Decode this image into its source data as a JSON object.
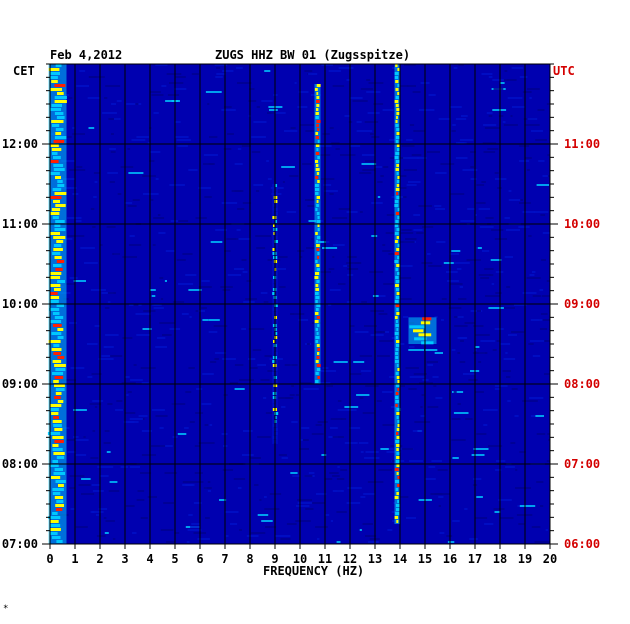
{
  "chart_data": {
    "type": "heatmap",
    "title": "ZUGS HHZ BW 01 (Zugsspitze)",
    "date": "Feb 4,2012",
    "left_axis_title": "CET",
    "right_axis_title": "UTC",
    "xlabel": "FREQUENCY (HZ)",
    "xlim": [
      0,
      20
    ],
    "x_ticks": [
      "0",
      "1",
      "2",
      "3",
      "4",
      "5",
      "6",
      "7",
      "8",
      "9",
      "10",
      "11",
      "12",
      "13",
      "14",
      "15",
      "16",
      "17",
      "18",
      "19",
      "20"
    ],
    "y_time_range_cet": [
      "07:00",
      "13:00"
    ],
    "y_ticks_cet": [
      "07:00",
      "08:00",
      "09:00",
      "10:00",
      "11:00",
      "12:00"
    ],
    "y_ticks_utc": [
      "06:00",
      "07:00",
      "08:00",
      "09:00",
      "10:00",
      "11:00"
    ],
    "colors": {
      "background": "#0000b0",
      "low": "#0010c8",
      "mid": "#00c8ff",
      "high": "#ffff00",
      "peak": "#ff2000",
      "utc_label": "#d40000"
    },
    "energy_bands": [
      {
        "freq_hz": 0.3,
        "time_cet": [
          "07:00",
          "13:00"
        ],
        "level": "high"
      },
      {
        "freq_hz": 9.0,
        "time_cet": [
          "08:15",
          "11:30"
        ],
        "level": "mid"
      },
      {
        "freq_hz": 10.7,
        "time_cet": [
          "09:00",
          "12:45"
        ],
        "level": "high"
      },
      {
        "freq_hz": 13.9,
        "time_cet": [
          "07:15",
          "13:00"
        ],
        "level": "high"
      },
      {
        "freq_hz": 14.9,
        "time_cet": [
          "09:30",
          "09:50"
        ],
        "level": "high"
      }
    ],
    "grid": true
  },
  "footer_mark": "*"
}
